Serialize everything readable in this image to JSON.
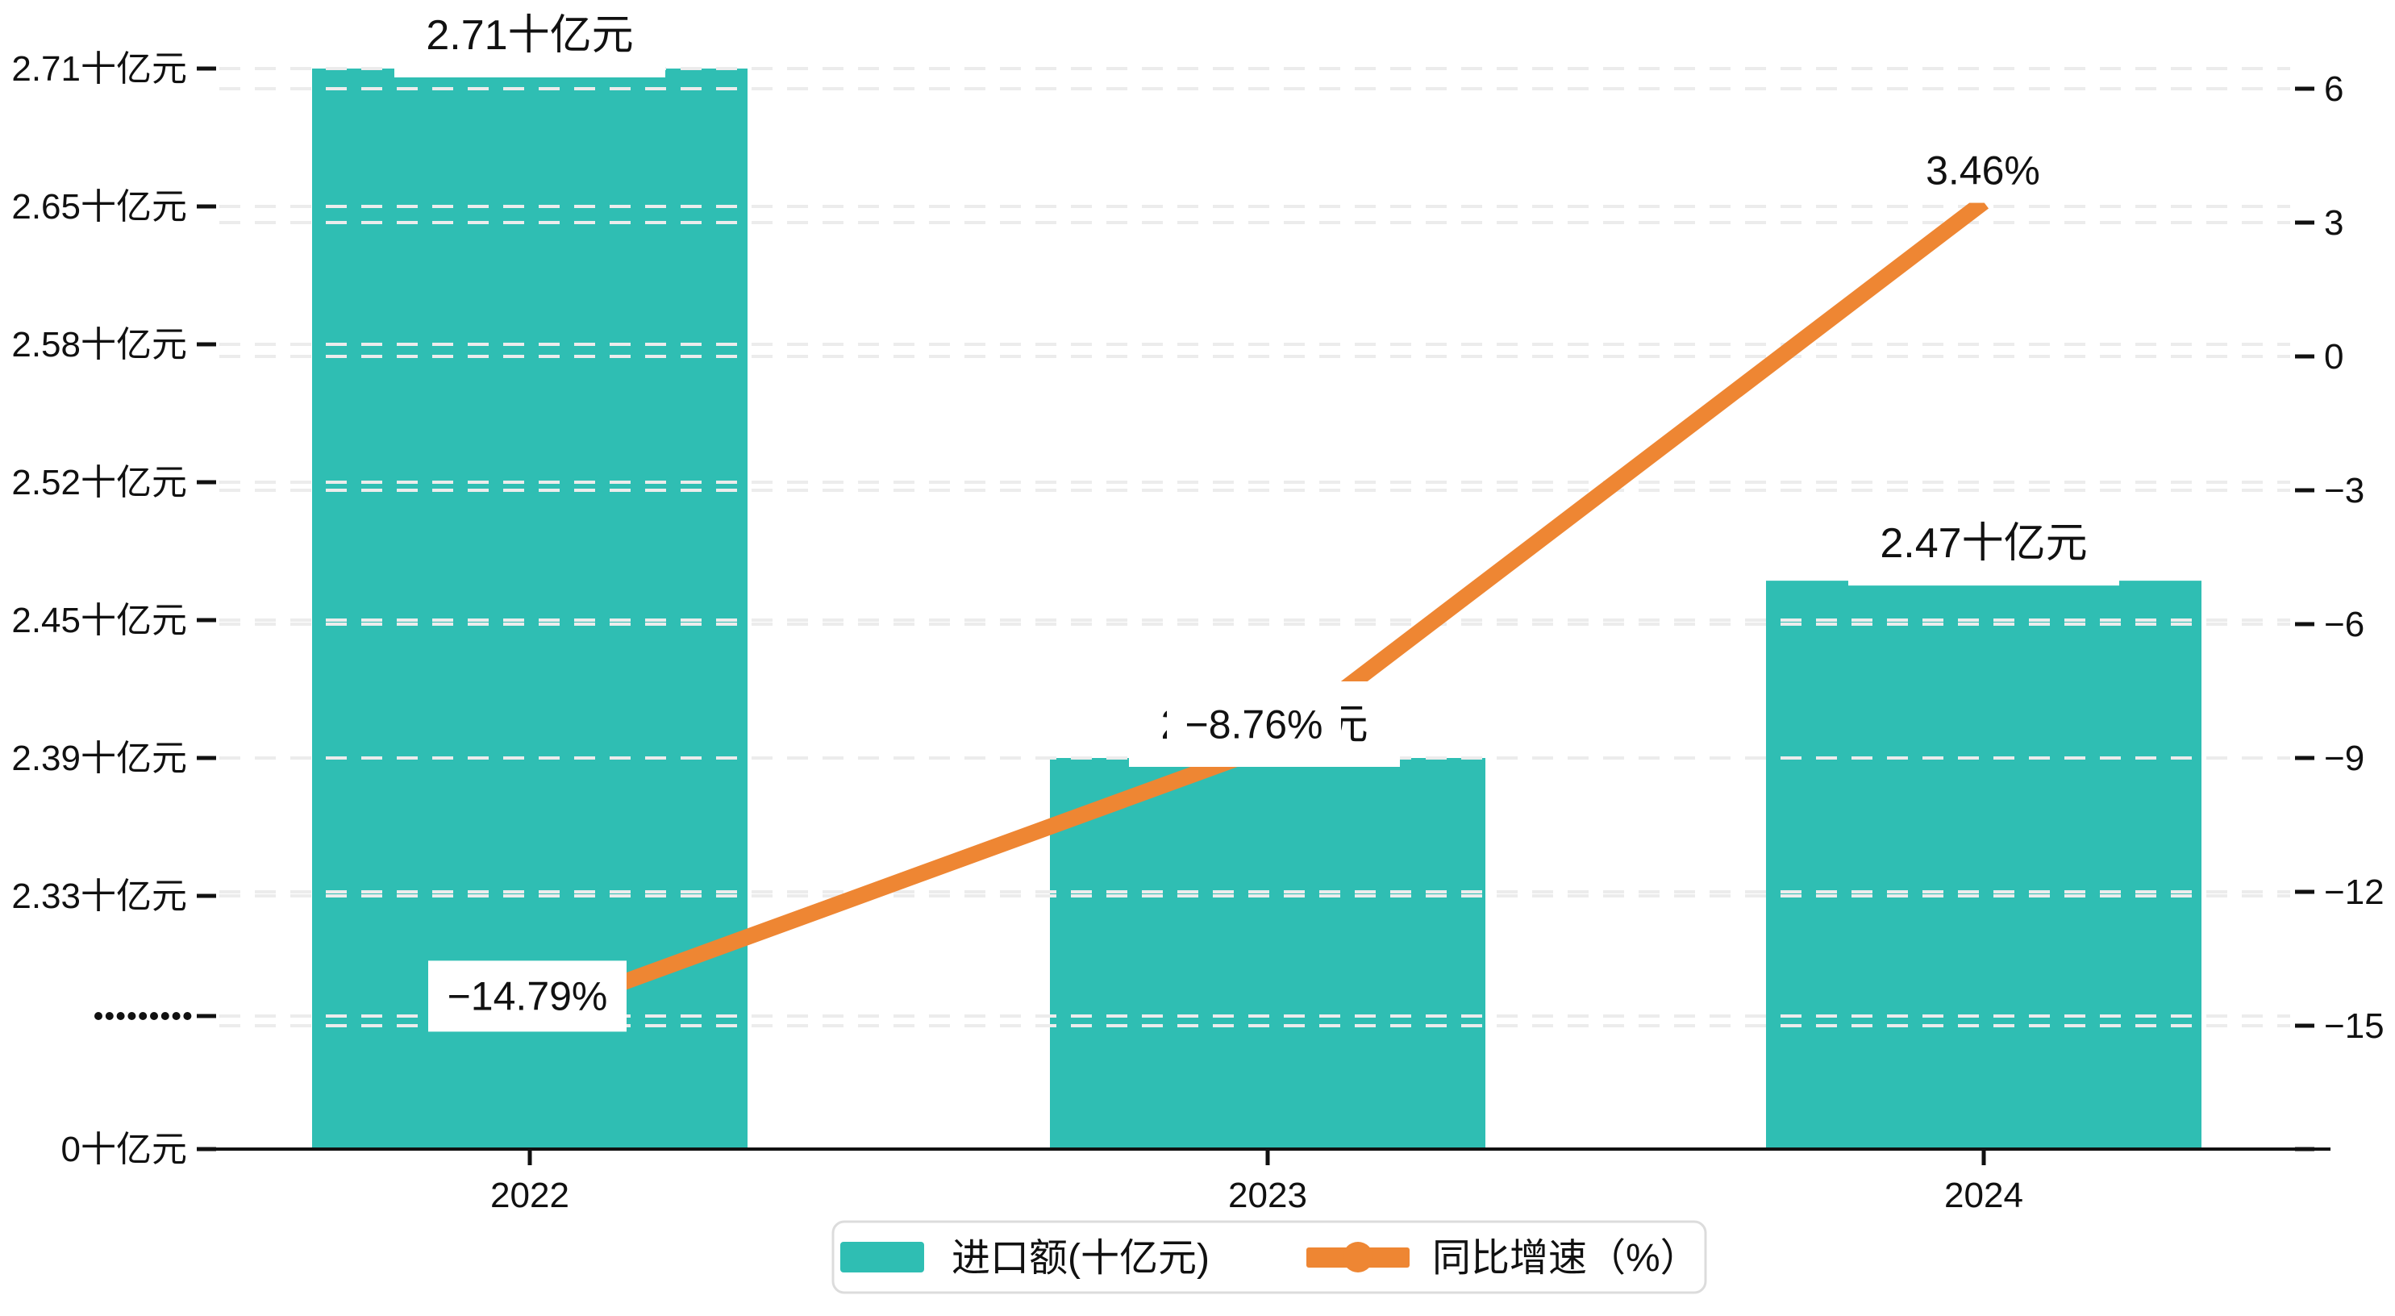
{
  "chart_data": {
    "type": "combo-bar-line",
    "title": "",
    "categories": [
      "2022",
      "2023",
      "2024"
    ],
    "series": [
      {
        "name": "进口额(十亿元)",
        "type": "bar",
        "values": [
          2.71,
          2.39,
          2.47
        ],
        "color": "#2FBEB3",
        "data_labels": [
          "2.71十亿元",
          "2.39十亿元",
          "2.47十亿元"
        ],
        "axis": "left"
      },
      {
        "name": "同比增速（%）",
        "type": "line",
        "values": [
          -14.79,
          -8.76,
          3.46
        ],
        "color": "#EE8633",
        "data_labels": [
          "−14.79%",
          "−8.76%",
          "3.46%"
        ],
        "axis": "right"
      }
    ],
    "left_axis": {
      "unit": "十亿元",
      "tick_labels": [
        "2.71十亿元",
        "2.65十亿元",
        "2.58十亿元",
        "2.52十亿元",
        "2.45十亿元",
        "2.39十亿元",
        "2.33十亿元",
        "·········",
        "0十亿元"
      ],
      "tick_values": [
        2.71,
        2.65,
        2.58,
        2.52,
        2.45,
        2.39,
        2.33,
        null,
        0
      ],
      "axis_break": true,
      "break_marker": "·········"
    },
    "right_axis": {
      "tick_labels": [
        "6",
        "3",
        "0",
        "−3",
        "−6",
        "−9",
        "−12",
        "−15"
      ],
      "tick_values": [
        6,
        3,
        0,
        -3,
        -6,
        -9,
        -12,
        -15
      ],
      "range": [
        -15,
        6
      ]
    },
    "legend": {
      "position": "bottom-center",
      "items": [
        {
          "label": "进口额(十亿元)",
          "marker": "bar-swatch",
          "color": "#2FBEB3"
        },
        {
          "label": "同比增速（%）",
          "marker": "line-dot",
          "color": "#EE8633"
        }
      ]
    },
    "style": {
      "background": "#ffffff",
      "gridline_color": "#ececec",
      "axis_color": "#111111",
      "label_box_color": "#ffffff",
      "grid": true
    }
  }
}
